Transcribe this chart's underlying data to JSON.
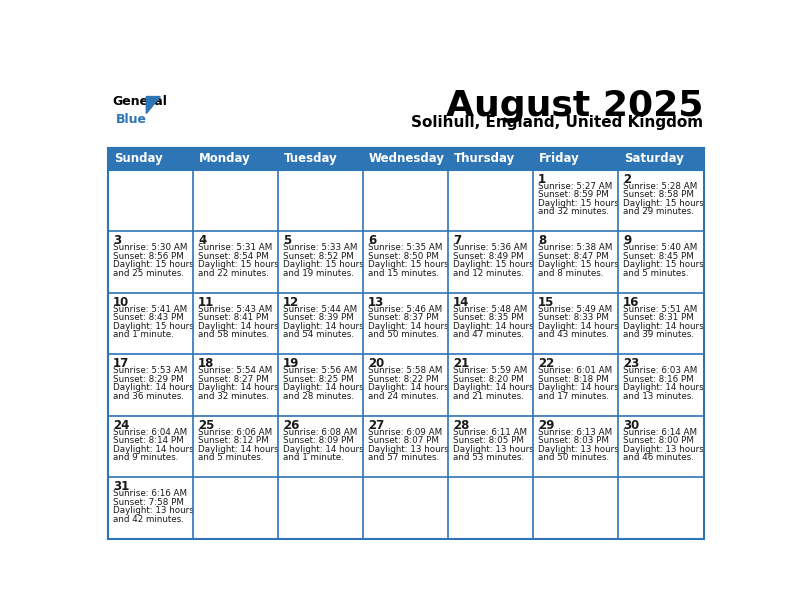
{
  "title": "August 2025",
  "subtitle": "Solihull, England, United Kingdom",
  "header_color": "#2E75B6",
  "header_text_color": "#FFFFFF",
  "cell_bg_color": "#FFFFFF",
  "grid_color": "#2E75B6",
  "text_color": "#1A1A1A",
  "days_of_week": [
    "Sunday",
    "Monday",
    "Tuesday",
    "Wednesday",
    "Thursday",
    "Friday",
    "Saturday"
  ],
  "weeks": [
    [
      {
        "day": null,
        "sunrise": null,
        "sunset": null,
        "daylight": null
      },
      {
        "day": null,
        "sunrise": null,
        "sunset": null,
        "daylight": null
      },
      {
        "day": null,
        "sunrise": null,
        "sunset": null,
        "daylight": null
      },
      {
        "day": null,
        "sunrise": null,
        "sunset": null,
        "daylight": null
      },
      {
        "day": null,
        "sunrise": null,
        "sunset": null,
        "daylight": null
      },
      {
        "day": 1,
        "sunrise": "5:27 AM",
        "sunset": "8:59 PM",
        "daylight": "15 hours\nand 32 minutes."
      },
      {
        "day": 2,
        "sunrise": "5:28 AM",
        "sunset": "8:58 PM",
        "daylight": "15 hours\nand 29 minutes."
      }
    ],
    [
      {
        "day": 3,
        "sunrise": "5:30 AM",
        "sunset": "8:56 PM",
        "daylight": "15 hours\nand 25 minutes."
      },
      {
        "day": 4,
        "sunrise": "5:31 AM",
        "sunset": "8:54 PM",
        "daylight": "15 hours\nand 22 minutes."
      },
      {
        "day": 5,
        "sunrise": "5:33 AM",
        "sunset": "8:52 PM",
        "daylight": "15 hours\nand 19 minutes."
      },
      {
        "day": 6,
        "sunrise": "5:35 AM",
        "sunset": "8:50 PM",
        "daylight": "15 hours\nand 15 minutes."
      },
      {
        "day": 7,
        "sunrise": "5:36 AM",
        "sunset": "8:49 PM",
        "daylight": "15 hours\nand 12 minutes."
      },
      {
        "day": 8,
        "sunrise": "5:38 AM",
        "sunset": "8:47 PM",
        "daylight": "15 hours\nand 8 minutes."
      },
      {
        "day": 9,
        "sunrise": "5:40 AM",
        "sunset": "8:45 PM",
        "daylight": "15 hours\nand 5 minutes."
      }
    ],
    [
      {
        "day": 10,
        "sunrise": "5:41 AM",
        "sunset": "8:43 PM",
        "daylight": "15 hours\nand 1 minute."
      },
      {
        "day": 11,
        "sunrise": "5:43 AM",
        "sunset": "8:41 PM",
        "daylight": "14 hours\nand 58 minutes."
      },
      {
        "day": 12,
        "sunrise": "5:44 AM",
        "sunset": "8:39 PM",
        "daylight": "14 hours\nand 54 minutes."
      },
      {
        "day": 13,
        "sunrise": "5:46 AM",
        "sunset": "8:37 PM",
        "daylight": "14 hours\nand 50 minutes."
      },
      {
        "day": 14,
        "sunrise": "5:48 AM",
        "sunset": "8:35 PM",
        "daylight": "14 hours\nand 47 minutes."
      },
      {
        "day": 15,
        "sunrise": "5:49 AM",
        "sunset": "8:33 PM",
        "daylight": "14 hours\nand 43 minutes."
      },
      {
        "day": 16,
        "sunrise": "5:51 AM",
        "sunset": "8:31 PM",
        "daylight": "14 hours\nand 39 minutes."
      }
    ],
    [
      {
        "day": 17,
        "sunrise": "5:53 AM",
        "sunset": "8:29 PM",
        "daylight": "14 hours\nand 36 minutes."
      },
      {
        "day": 18,
        "sunrise": "5:54 AM",
        "sunset": "8:27 PM",
        "daylight": "14 hours\nand 32 minutes."
      },
      {
        "day": 19,
        "sunrise": "5:56 AM",
        "sunset": "8:25 PM",
        "daylight": "14 hours\nand 28 minutes."
      },
      {
        "day": 20,
        "sunrise": "5:58 AM",
        "sunset": "8:22 PM",
        "daylight": "14 hours\nand 24 minutes."
      },
      {
        "day": 21,
        "sunrise": "5:59 AM",
        "sunset": "8:20 PM",
        "daylight": "14 hours\nand 21 minutes."
      },
      {
        "day": 22,
        "sunrise": "6:01 AM",
        "sunset": "8:18 PM",
        "daylight": "14 hours\nand 17 minutes."
      },
      {
        "day": 23,
        "sunrise": "6:03 AM",
        "sunset": "8:16 PM",
        "daylight": "14 hours\nand 13 minutes."
      }
    ],
    [
      {
        "day": 24,
        "sunrise": "6:04 AM",
        "sunset": "8:14 PM",
        "daylight": "14 hours\nand 9 minutes."
      },
      {
        "day": 25,
        "sunrise": "6:06 AM",
        "sunset": "8:12 PM",
        "daylight": "14 hours\nand 5 minutes."
      },
      {
        "day": 26,
        "sunrise": "6:08 AM",
        "sunset": "8:09 PM",
        "daylight": "14 hours\nand 1 minute."
      },
      {
        "day": 27,
        "sunrise": "6:09 AM",
        "sunset": "8:07 PM",
        "daylight": "13 hours\nand 57 minutes."
      },
      {
        "day": 28,
        "sunrise": "6:11 AM",
        "sunset": "8:05 PM",
        "daylight": "13 hours\nand 53 minutes."
      },
      {
        "day": 29,
        "sunrise": "6:13 AM",
        "sunset": "8:03 PM",
        "daylight": "13 hours\nand 50 minutes."
      },
      {
        "day": 30,
        "sunrise": "6:14 AM",
        "sunset": "8:00 PM",
        "daylight": "13 hours\nand 46 minutes."
      }
    ],
    [
      {
        "day": 31,
        "sunrise": "6:16 AM",
        "sunset": "7:58 PM",
        "daylight": "13 hours\nand 42 minutes."
      },
      {
        "day": null,
        "sunrise": null,
        "sunset": null,
        "daylight": null
      },
      {
        "day": null,
        "sunrise": null,
        "sunset": null,
        "daylight": null
      },
      {
        "day": null,
        "sunrise": null,
        "sunset": null,
        "daylight": null
      },
      {
        "day": null,
        "sunrise": null,
        "sunset": null,
        "daylight": null
      },
      {
        "day": null,
        "sunrise": null,
        "sunset": null,
        "daylight": null
      },
      {
        "day": null,
        "sunrise": null,
        "sunset": null,
        "daylight": null
      }
    ]
  ]
}
